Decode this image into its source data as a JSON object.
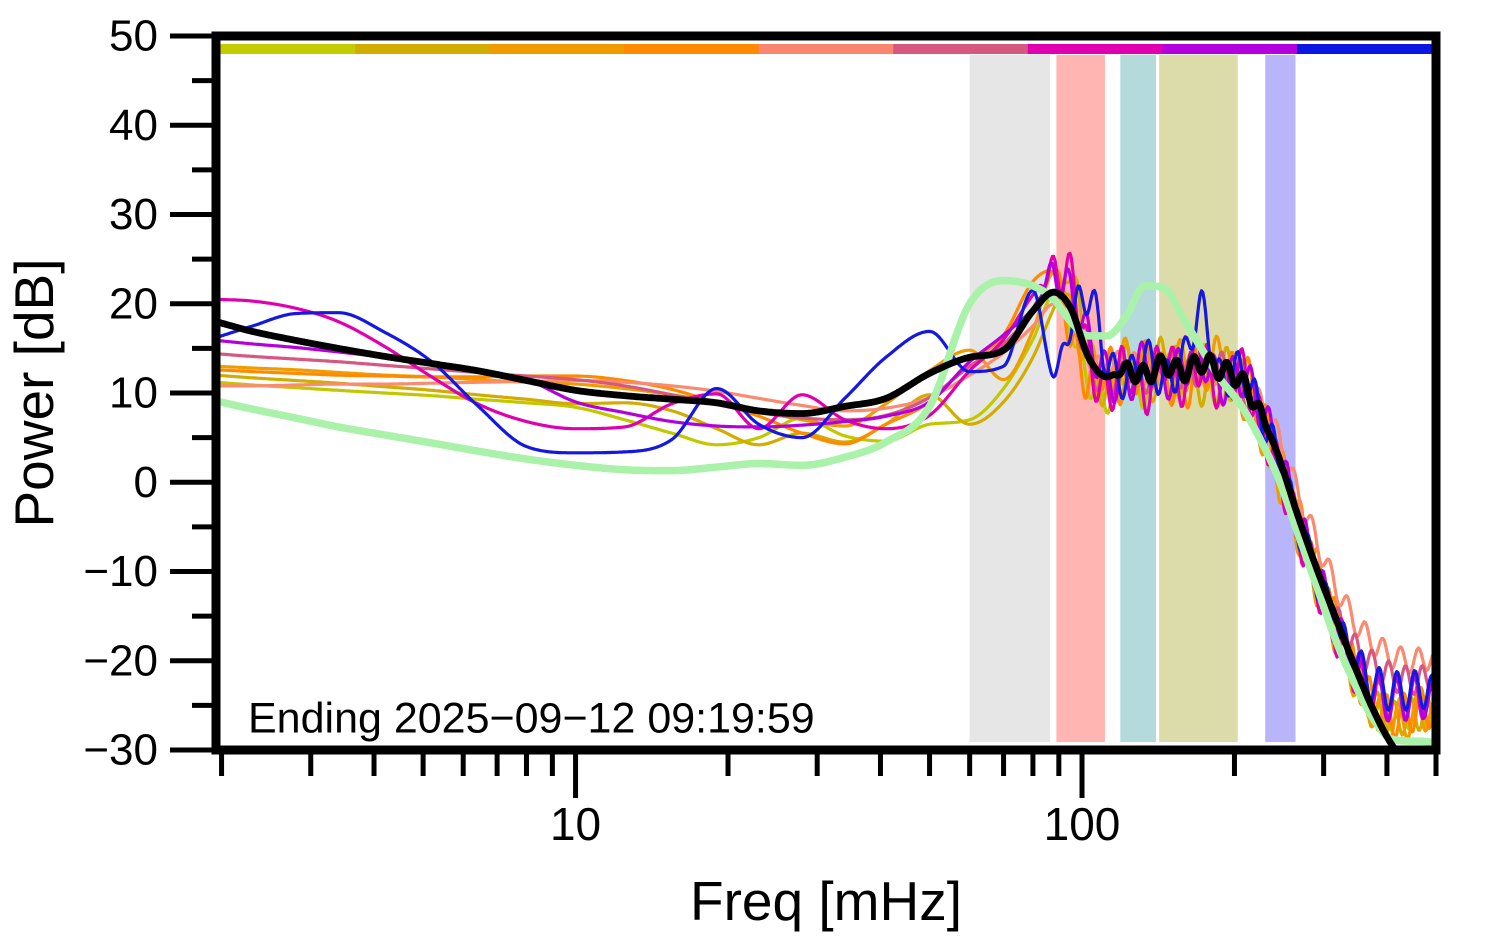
{
  "chart_data": {
    "type": "line",
    "xlabel": "Freq [mHz]",
    "ylabel": "Power [dB]",
    "annotation": "Ending 2025−09−12 09:19:59",
    "x_scale": "log",
    "xlim": [
      1.95,
      500
    ],
    "ylim": [
      -30,
      50
    ],
    "grid": false,
    "legend": "none",
    "y_major_ticks": [
      {
        "v": 50,
        "label": "50"
      },
      {
        "v": 40,
        "label": "40"
      },
      {
        "v": 30,
        "label": "30"
      },
      {
        "v": 20,
        "label": "20"
      },
      {
        "v": 10,
        "label": "10"
      },
      {
        "v": 0,
        "label": "0"
      },
      {
        "v": -10,
        "label": "−10"
      },
      {
        "v": -20,
        "label": "−20"
      },
      {
        "v": -30,
        "label": "−30"
      }
    ],
    "y_minor_ticks": [
      45,
      35,
      25,
      15,
      5,
      -5,
      -15,
      -25
    ],
    "x_major_ticks": [
      {
        "v": 10,
        "label": "10"
      },
      {
        "v": 100,
        "label": "100"
      }
    ],
    "x_minor_ticks": [
      2,
      3,
      4,
      5,
      6,
      7,
      8,
      9,
      20,
      30,
      40,
      50,
      60,
      70,
      80,
      90,
      200,
      300,
      400,
      500
    ],
    "top_bar_segment_colors": [
      "#c3cc00",
      "#d2ac00",
      "#f09c00",
      "#ff8a00",
      "#fa8570",
      "#d65880",
      "#e000b0",
      "#b400dc",
      "#0b16e0"
    ],
    "bands": [
      {
        "name": "band-gray",
        "f_start": 60,
        "f_end": 86.5,
        "color": "#e6e6e6"
      },
      {
        "name": "band-pink",
        "f_start": 89,
        "f_end": 111,
        "color": "#ffb5b2"
      },
      {
        "name": "band-teal",
        "f_start": 119,
        "f_end": 140,
        "color": "#b5dadc"
      },
      {
        "name": "band-olive",
        "f_start": 142,
        "f_end": 203,
        "color": "#dbdcaa"
      },
      {
        "name": "band-lavender",
        "f_start": 230,
        "f_end": 264,
        "color": "#b8b5fa"
      }
    ],
    "freqs_mHz": [
      1.95,
      2.3,
      2.8,
      3.4,
      4.2,
      5.2,
      6.4,
      8,
      10,
      12.5,
      15.5,
      19,
      23,
      28,
      34,
      41,
      50,
      60,
      70,
      80,
      88,
      95,
      103,
      112,
      122,
      133,
      145,
      158,
      172,
      188,
      205,
      224,
      244,
      266,
      290,
      316,
      345,
      376,
      410,
      450,
      500
    ],
    "series": [
      {
        "name": "segment-1-spectrum",
        "color": "#c0c800",
        "width": 3.2,
        "values": [
          11.2,
          10.9,
          10.6,
          10.3,
          10.0,
          9.7,
          9.3,
          8.9,
          8.4,
          7.0,
          5.5,
          4.2,
          5.0,
          7.2,
          5.2,
          4.6,
          6.5,
          7.0,
          10.5,
          16.0,
          21.0,
          17.0,
          11.5,
          9.5,
          12.5,
          10.0,
          13.0,
          11.0,
          14.0,
          9.5,
          12.0,
          7.5,
          2.0,
          -4.0,
          -10.0,
          -15.5,
          -21.5,
          -24.5,
          -26.0,
          -25.8,
          -25.4
        ],
        "wiggle": {
          "amp": 1.8,
          "period": 0.035,
          "phase": 0.0,
          "f_start": 90,
          "f_end": 470
        }
      },
      {
        "name": "segment-2-spectrum",
        "color": "#d2ac00",
        "width": 3.2,
        "values": [
          12.0,
          11.7,
          11.4,
          11.1,
          10.7,
          10.3,
          9.8,
          9.3,
          8.8,
          8.9,
          8.0,
          6.0,
          4.2,
          5.5,
          4.5,
          6.5,
          9.8,
          6.5,
          9.0,
          14.0,
          19.5,
          23.0,
          15.0,
          10.0,
          13.5,
          11.5,
          14.5,
          12.5,
          10.5,
          13.5,
          11.0,
          6.5,
          1.0,
          -5.0,
          -11.0,
          -16.5,
          -22.0,
          -25.0,
          -26.5,
          -26.0,
          -25.2
        ],
        "wiggle": {
          "amp": 2.0,
          "period": 0.033,
          "phase": 1.2,
          "f_start": 90,
          "f_end": 470
        }
      },
      {
        "name": "segment-3-spectrum",
        "color": "#f09c00",
        "width": 3.2,
        "values": [
          13.0,
          12.8,
          12.6,
          12.3,
          12.0,
          11.8,
          11.5,
          11.2,
          11.0,
          10.5,
          9.8,
          9.0,
          8.0,
          7.0,
          6.3,
          8.8,
          12.5,
          14.8,
          11.5,
          17.0,
          23.5,
          19.5,
          13.0,
          11.0,
          14.0,
          12.0,
          10.5,
          14.0,
          12.0,
          14.5,
          10.0,
          6.0,
          0.5,
          -5.5,
          -11.5,
          -17.0,
          -22.0,
          -25.5,
          -27.0,
          -26.3,
          -24.8
        ],
        "wiggle": {
          "amp": 2.2,
          "period": 0.036,
          "phase": 2.2,
          "f_start": 88,
          "f_end": 470
        }
      },
      {
        "name": "segment-4-spectrum",
        "color": "#ff8a00",
        "width": 3.2,
        "values": [
          12.6,
          12.4,
          12.2,
          12.0,
          11.9,
          11.8,
          11.8,
          11.9,
          11.9,
          11.4,
          10.4,
          8.9,
          7.4,
          5.5,
          4.3,
          6.5,
          9.0,
          13.5,
          16.5,
          22.5,
          23.8,
          16.5,
          11.5,
          13.0,
          10.5,
          13.5,
          12.0,
          10.0,
          13.5,
          11.0,
          13.0,
          8.0,
          2.5,
          -3.5,
          -9.5,
          -15.5,
          -21.0,
          -24.8,
          -26.3,
          -25.6,
          -24.6
        ],
        "wiggle": {
          "amp": 2.4,
          "period": 0.034,
          "phase": 3.1,
          "f_start": 85,
          "f_end": 470
        }
      },
      {
        "name": "segment-5-spectrum",
        "color": "#fa8a70",
        "width": 3.2,
        "values": [
          10.8,
          10.8,
          10.9,
          11.0,
          11.0,
          11.1,
          11.2,
          11.3,
          11.4,
          11.2,
          10.8,
          10.2,
          9.4,
          8.6,
          8.0,
          8.3,
          9.5,
          12.0,
          14.5,
          17.5,
          20.0,
          18.0,
          14.0,
          12.5,
          13.8,
          12.3,
          13.0,
          12.0,
          13.0,
          12.0,
          11.5,
          9.0,
          5.0,
          -1.0,
          -6.5,
          -11.5,
          -15.5,
          -18.0,
          -19.5,
          -20.0,
          -19.4
        ],
        "wiggle": {
          "amp": 1.4,
          "period": 0.035,
          "phase": 4.0,
          "f_start": 95,
          "f_end": 470
        }
      },
      {
        "name": "segment-6-spectrum",
        "color": "#d65880",
        "width": 3.2,
        "values": [
          14.4,
          14.1,
          13.8,
          13.5,
          13.1,
          12.7,
          12.3,
          11.9,
          11.5,
          10.8,
          9.8,
          8.7,
          7.8,
          7.2,
          7.0,
          7.5,
          9.5,
          13.0,
          15.5,
          19.0,
          21.5,
          19.5,
          13.5,
          11.0,
          13.0,
          11.5,
          13.5,
          12.0,
          12.5,
          13.0,
          10.5,
          7.0,
          2.0,
          -4.5,
          -10.5,
          -15.0,
          -18.5,
          -20.5,
          -21.8,
          -22.2,
          -21.9
        ],
        "wiggle": {
          "amp": 1.6,
          "period": 0.033,
          "phase": 5.0,
          "f_start": 92,
          "f_end": 470
        }
      },
      {
        "name": "segment-7-spectrum",
        "color": "#e000b0",
        "width": 3.2,
        "values": [
          20.5,
          20.3,
          19.5,
          18.0,
          15.2,
          11.8,
          8.8,
          6.8,
          6.0,
          6.2,
          8.8,
          9.9,
          6.0,
          9.8,
          7.0,
          6.0,
          7.5,
          12.5,
          16.0,
          21.0,
          23.5,
          23.0,
          14.0,
          10.0,
          13.0,
          10.0,
          14.0,
          11.0,
          13.5,
          10.5,
          12.5,
          7.0,
          1.5,
          -5.0,
          -11.0,
          -16.5,
          -21.0,
          -23.2,
          -24.2,
          -24.0,
          -23.6
        ],
        "wiggle": {
          "amp": 2.6,
          "period": 0.034,
          "phase": 0.7,
          "f_start": 80,
          "f_end": 470
        }
      },
      {
        "name": "segment-8-spectrum",
        "color": "#b400dc",
        "width": 3.2,
        "values": [
          15.9,
          15.5,
          15.1,
          14.6,
          14.0,
          13.3,
          12.5,
          11.5,
          9.0,
          7.8,
          6.8,
          6.3,
          6.2,
          6.4,
          6.8,
          7.4,
          9.0,
          13.5,
          16.5,
          19.5,
          23.3,
          21.0,
          16.0,
          12.0,
          11.0,
          13.5,
          11.5,
          13.0,
          14.0,
          11.0,
          12.0,
          8.5,
          3.0,
          -4.0,
          -10.0,
          -16.0,
          -20.5,
          -23.3,
          -24.4,
          -24.2,
          -23.8
        ],
        "wiggle": {
          "amp": 2.4,
          "period": 0.036,
          "phase": 1.9,
          "f_start": 80,
          "f_end": 470
        }
      },
      {
        "name": "segment-9-spectrum",
        "color": "#1418e0",
        "width": 3.2,
        "values": [
          16.2,
          17.5,
          18.9,
          19.0,
          16.8,
          13.5,
          8.6,
          4.0,
          3.3,
          3.4,
          4.8,
          10.5,
          6.5,
          5.0,
          9.4,
          14.0,
          16.9,
          12.4,
          13.0,
          21.5,
          12.0,
          18.0,
          21.0,
          13.5,
          11.5,
          14.0,
          11.5,
          13.5,
          19.3,
          11.5,
          12.5,
          8.0,
          2.5,
          -4.5,
          -10.5,
          -16.0,
          -20.0,
          -22.5,
          -23.4,
          -23.3,
          -23.0
        ],
        "wiggle": {
          "amp": 2.2,
          "period": 0.035,
          "phase": 2.9,
          "f_start": 85,
          "f_end": 470
        }
      },
      {
        "name": "current-spectrum",
        "color": "#aaf2aa",
        "width": 7.5,
        "values": [
          9.1,
          8.2,
          7.2,
          6.2,
          5.3,
          4.4,
          3.5,
          2.6,
          1.9,
          1.4,
          1.3,
          1.7,
          2.1,
          1.9,
          2.8,
          4.5,
          8.5,
          20.0,
          22.6,
          22.0,
          20.5,
          18.0,
          16.4,
          16.4,
          18.5,
          22.0,
          21.8,
          18.5,
          15.0,
          11.5,
          8.8,
          5.0,
          0.5,
          -5.5,
          -11.5,
          -17.5,
          -22.5,
          -26.5,
          -28.8,
          -29.0,
          -28.3
        ],
        "wiggle": null
      },
      {
        "name": "mean-spectrum",
        "color": "#000000",
        "width": 6.8,
        "values": [
          18.0,
          16.9,
          15.9,
          15.0,
          14.1,
          13.3,
          12.5,
          11.4,
          10.3,
          9.7,
          9.3,
          8.9,
          8.0,
          7.7,
          8.5,
          9.4,
          12.2,
          14.0,
          14.8,
          19.2,
          21.3,
          19.5,
          14.0,
          11.8,
          12.6,
          12.0,
          13.2,
          12.4,
          13.4,
          12.6,
          11.5,
          8.0,
          3.0,
          -3.5,
          -9.5,
          -15.0,
          -20.5,
          -25.5,
          -29.5,
          -32.0,
          -33.0
        ],
        "wiggle": {
          "amp": 1.1,
          "period": 0.033,
          "phase": 0.5,
          "f_start": 112,
          "f_end": 215
        }
      }
    ]
  }
}
